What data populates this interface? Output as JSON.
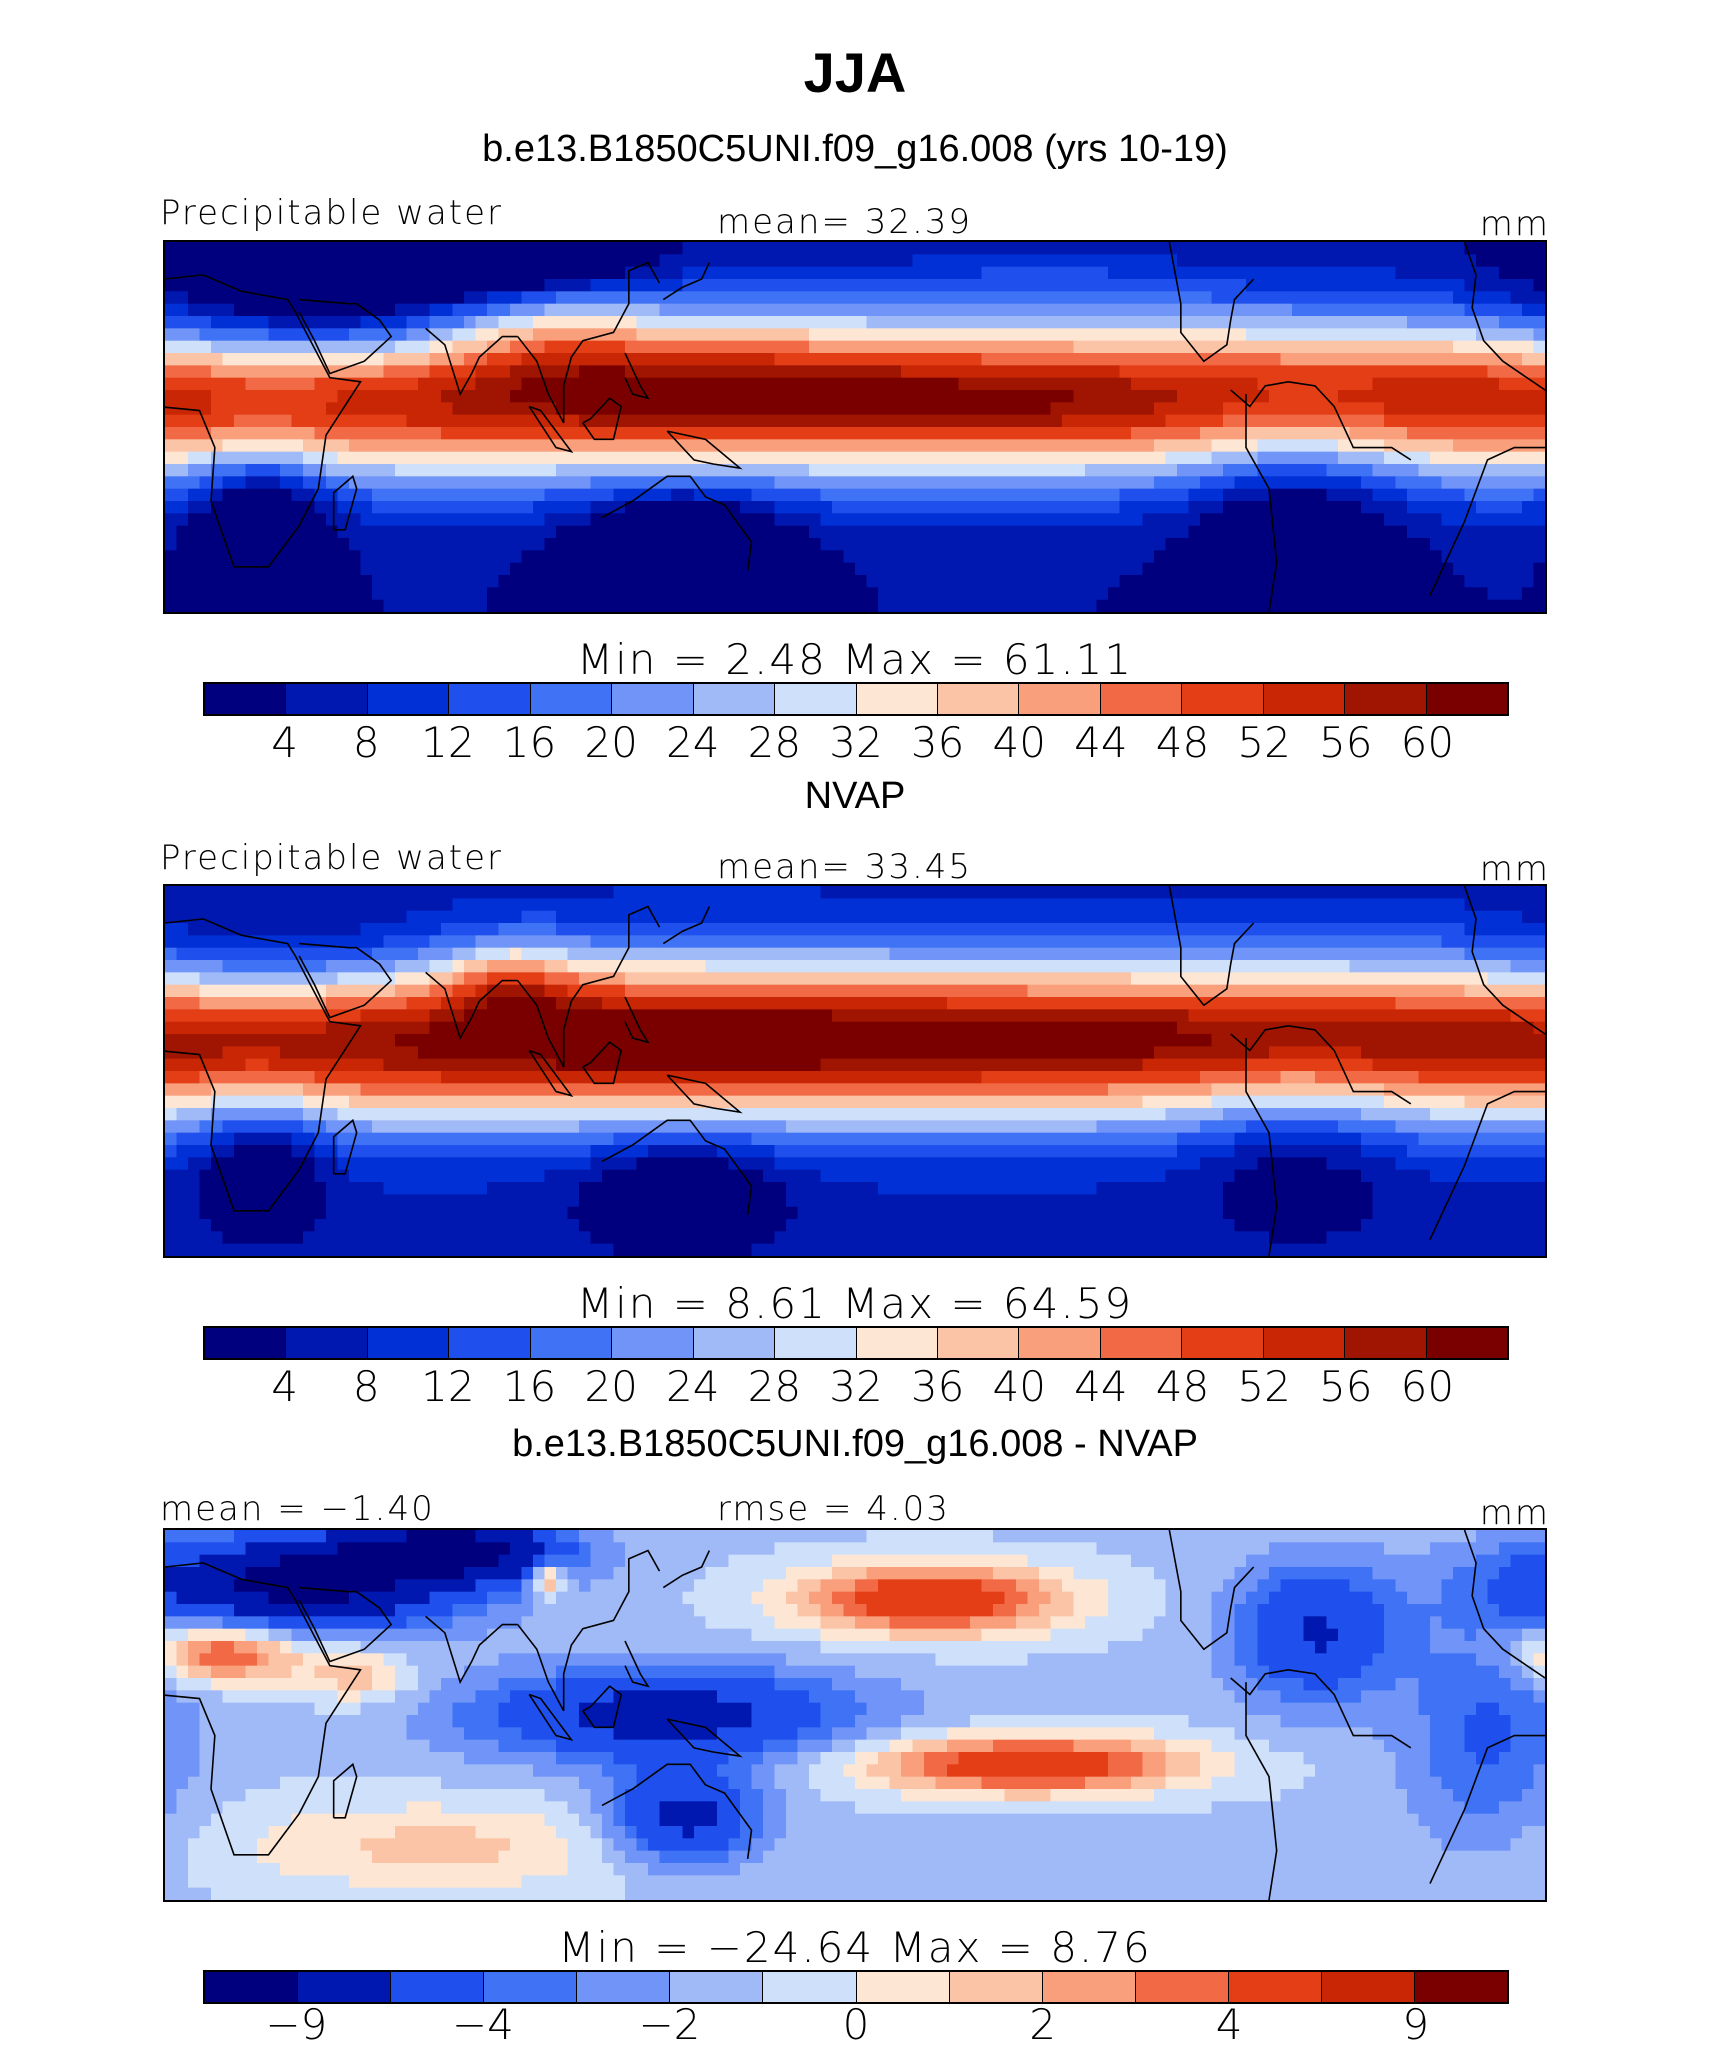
{
  "figure": {
    "title": "JJA",
    "panel_titles": [
      "b.e13.B1850C5UNI.f09_g16.008 (yrs 10-19)",
      "NVAP",
      "b.e13.B1850C5UNI.f09_g16.008 - NVAP"
    ]
  },
  "colors": {
    "abs": [
      "#00007f",
      "#0018b0",
      "#0030d6",
      "#1f50ee",
      "#3f72f5",
      "#7094f7",
      "#a0baf8",
      "#cfe0fa",
      "#fde6d4",
      "#fcc4a6",
      "#f99f7b",
      "#f26a45",
      "#e43e16",
      "#c82605",
      "#a01402",
      "#7a0000"
    ],
    "diff": [
      "#00007f",
      "#0018b0",
      "#1f50ee",
      "#3f72f5",
      "#7094f7",
      "#a0baf8",
      "#cfe0fa",
      "#fde6d4",
      "#fcc4a6",
      "#f99f7b",
      "#f26a45",
      "#e43e16",
      "#c82605",
      "#7a0000"
    ],
    "coast": "#000000"
  },
  "chart_data": [
    {
      "type": "heatmap",
      "title": "b.e13.B1850C5UNI.f09_g16.008 (yrs 10-19)",
      "left_label": "Precipitable water",
      "center_label": "mean=   32.39",
      "units": "mm",
      "mean": 32.39,
      "min": 2.48,
      "max": 61.11,
      "minmax_label": "Min =     2.48  Max =    61.11",
      "colorbar_ticks": [
        "4",
        "8",
        "12",
        "16",
        "20",
        "24",
        "28",
        "32",
        "36",
        "40",
        "44",
        "48",
        "52",
        "56",
        "60"
      ],
      "field": "model"
    },
    {
      "type": "heatmap",
      "title": "NVAP",
      "left_label": "Precipitable water",
      "center_label": "mean=   33.45",
      "units": "mm",
      "mean": 33.45,
      "min": 8.61,
      "max": 64.59,
      "minmax_label": "Min =     8.61  Max =    64.59",
      "colorbar_ticks": [
        "4",
        "8",
        "12",
        "16",
        "20",
        "24",
        "28",
        "32",
        "36",
        "40",
        "44",
        "48",
        "52",
        "56",
        "60"
      ],
      "field": "obs"
    },
    {
      "type": "heatmap",
      "title": "b.e13.B1850C5UNI.f09_g16.008 - NVAP",
      "left_label": "mean =   −1.40",
      "center_label": "rmse =    4.03",
      "units": "mm",
      "mean": -1.4,
      "rmse": 4.03,
      "min": -24.64,
      "max": 8.76,
      "minmax_label": "Min =  −24.64  Max =     8.76",
      "colorbar_ticks": [
        "−9",
        "−4",
        "−2",
        "0",
        "2",
        "4",
        "9"
      ],
      "colorbar_tick_bins": [
        1,
        3,
        5,
        7,
        9,
        11,
        13
      ],
      "field": "diff"
    }
  ]
}
